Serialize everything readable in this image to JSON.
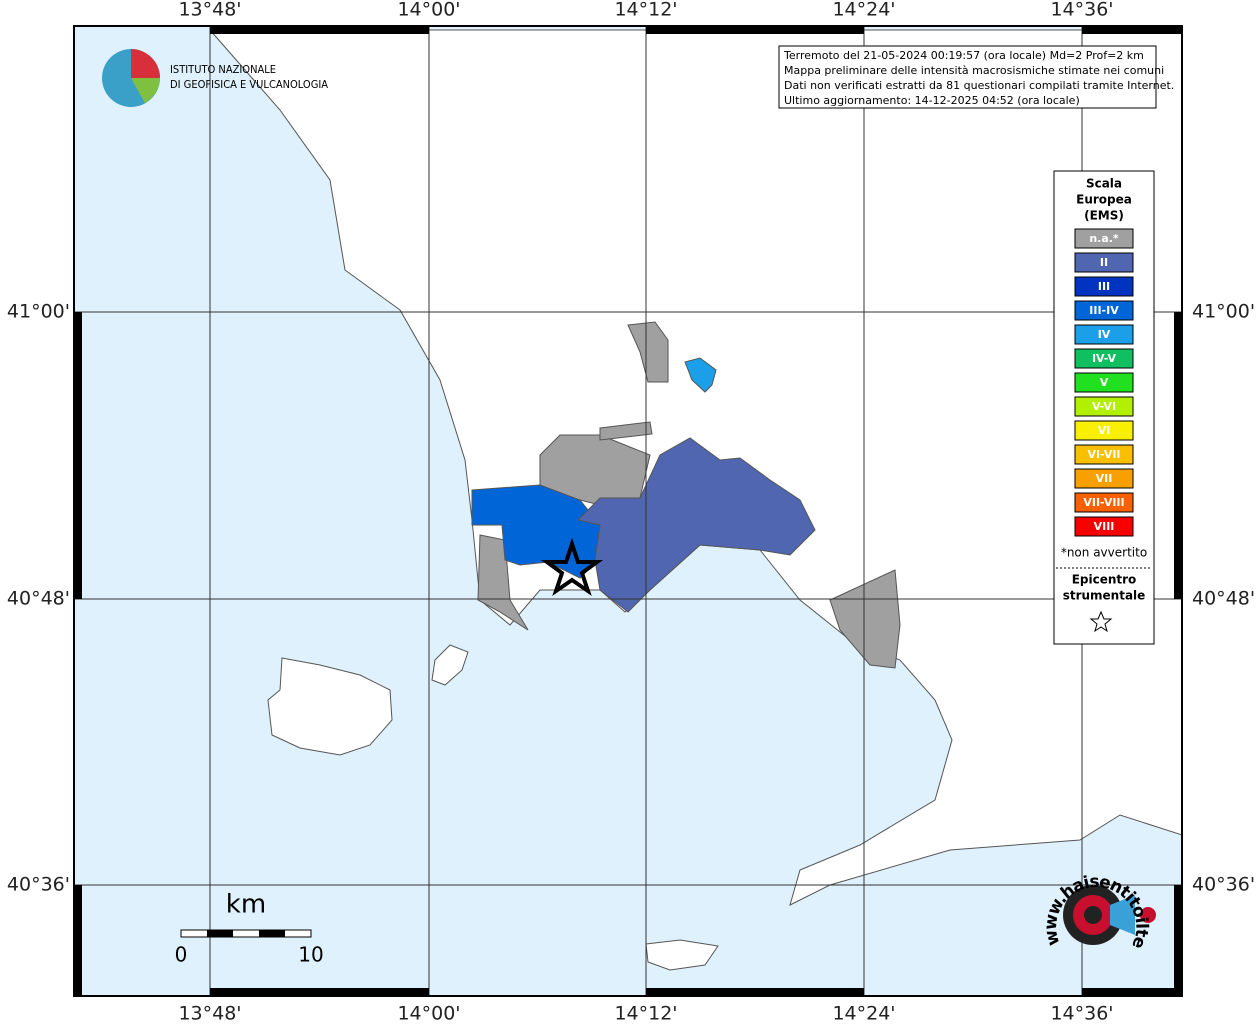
{
  "map": {
    "lon_labels": [
      "13°48'",
      "14°00'",
      "14°12'",
      "14°24'",
      "14°36'"
    ],
    "lat_labels": [
      "41°00'",
      "40°48'",
      "40°36'"
    ],
    "info_lines": [
      "Terremoto del 21-05-2024 00:19:57 (ora locale) Md=2 Prof=2 km",
      "Mappa preliminare delle intensità macrosismiche stimate nei comuni",
      "Dati non verificati estratti da 81 questionari compilati tramite Internet.",
      "Ultimo aggiornamento: 14-12-2025 04:52 (ora locale)"
    ],
    "legend": {
      "title_lines": [
        "Scala",
        "Europea",
        "(EMS)"
      ],
      "items": [
        {
          "label": "n.a.*",
          "color": "#a0a0a0"
        },
        {
          "label": "II",
          "color": "#5066b0"
        },
        {
          "label": "III",
          "color": "#0033c0"
        },
        {
          "label": "III-IV",
          "color": "#0066d8"
        },
        {
          "label": "IV",
          "color": "#1a9fe8"
        },
        {
          "label": "IV-V",
          "color": "#10c060"
        },
        {
          "label": "V",
          "color": "#20e020"
        },
        {
          "label": "V-VI",
          "color": "#b0f000"
        },
        {
          "label": "VI",
          "color": "#f8f000"
        },
        {
          "label": "VI-VII",
          "color": "#f8c000"
        },
        {
          "label": "VII",
          "color": "#f8a000"
        },
        {
          "label": "VII-VIII",
          "color": "#f86000"
        },
        {
          "label": "VIII",
          "color": "#f80000"
        }
      ],
      "note": "*non avvertito",
      "epicenter_lines": [
        "Epicentro",
        "strumentale"
      ]
    },
    "scale": {
      "unit": "km",
      "labels": [
        "0",
        "10"
      ]
    },
    "ingv_lines": [
      "ISTITUTO NAZIONALE",
      "DI GEOFISICA E VULCANOLOGIA"
    ],
    "hst_text": "www.haisentitoilterremoto.it"
  }
}
